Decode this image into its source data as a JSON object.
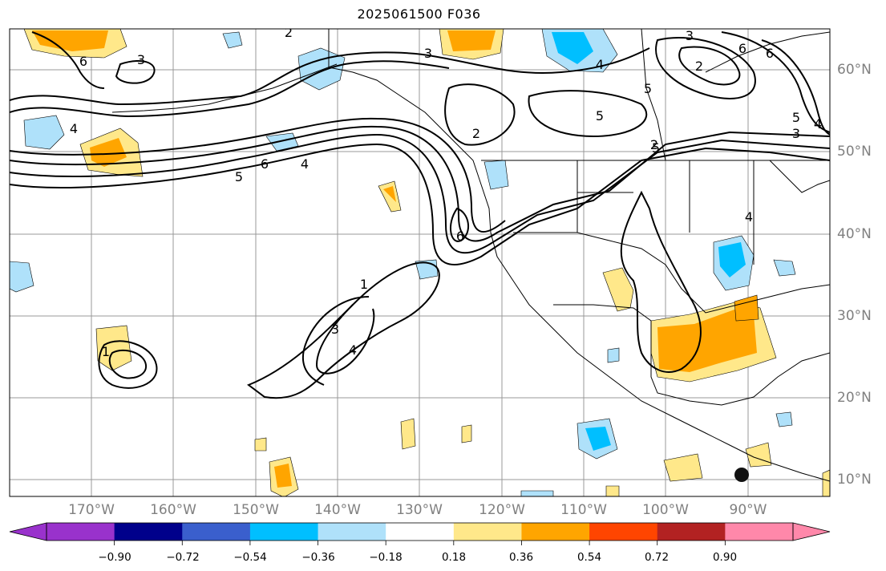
{
  "title": "2025061500 F036",
  "map": {
    "lon_range": [
      -180,
      -80
    ],
    "lat_range": [
      8,
      65
    ],
    "lon_labels": [
      "170°W",
      "160°W",
      "150°W",
      "140°W",
      "130°W",
      "120°W",
      "110°W",
      "100°W",
      "90°W"
    ],
    "lat_labels": [
      "60°N",
      "50°N",
      "40°N",
      "30°N",
      "20°N",
      "10°N"
    ],
    "gridlines": true,
    "contour_color": "#000000",
    "contour_labels": [
      "3",
      "4",
      "6",
      "2",
      "3",
      "6",
      "5",
      "3",
      "2",
      "5",
      "3",
      "4",
      "6",
      "5",
      "4",
      "2",
      "6",
      "5",
      "6",
      "4",
      "5",
      "2",
      "1",
      "3",
      "4",
      "1",
      "4"
    ]
  },
  "colorbar": {
    "ticks": [
      "−0.90",
      "−0.72",
      "−0.54",
      "−0.36",
      "−0.18",
      "0.18",
      "0.36",
      "0.54",
      "0.72",
      "0.90"
    ],
    "colors": [
      "#9932cc",
      "#00008b",
      "#3a5fcd",
      "#00bfff",
      "#afe1fa",
      "#ffffff",
      "#ffe88a",
      "#ffa500",
      "#ff4500",
      "#b22222",
      "#ff88aa"
    ]
  },
  "marker": {
    "label": "black-dot-marker"
  }
}
